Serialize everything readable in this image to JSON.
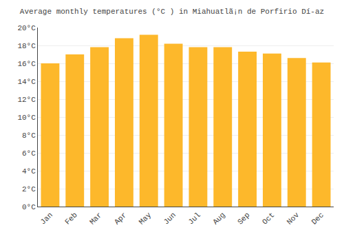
{
  "chart_data": {
    "type": "bar",
    "title": "Average monthly temperatures (°C ) in Miahuatlã¡n de Porfirio Dí-az",
    "categories": [
      "Jan",
      "Feb",
      "Mar",
      "Apr",
      "May",
      "Jun",
      "Jul",
      "Aug",
      "Sep",
      "Oct",
      "Nov",
      "Dec"
    ],
    "values": [
      16.0,
      17.0,
      17.8,
      18.8,
      19.2,
      18.2,
      17.8,
      17.8,
      17.3,
      17.1,
      16.6,
      16.1
    ],
    "color": "#FDB82B",
    "ylim": [
      0,
      20
    ],
    "yticks": [
      {
        "value": 0,
        "label": "0°C"
      },
      {
        "value": 2,
        "label": "2°C"
      },
      {
        "value": 4,
        "label": "4°C"
      },
      {
        "value": 6,
        "label": "6°C"
      },
      {
        "value": 8,
        "label": "8°C"
      },
      {
        "value": 10,
        "label": "10°C"
      },
      {
        "value": 12,
        "label": "12°C"
      },
      {
        "value": 14,
        "label": "14°C"
      },
      {
        "value": 16,
        "label": "16°C"
      },
      {
        "value": 18,
        "label": "18°C"
      },
      {
        "value": 20,
        "label": "20°C"
      }
    ],
    "grid": true
  }
}
